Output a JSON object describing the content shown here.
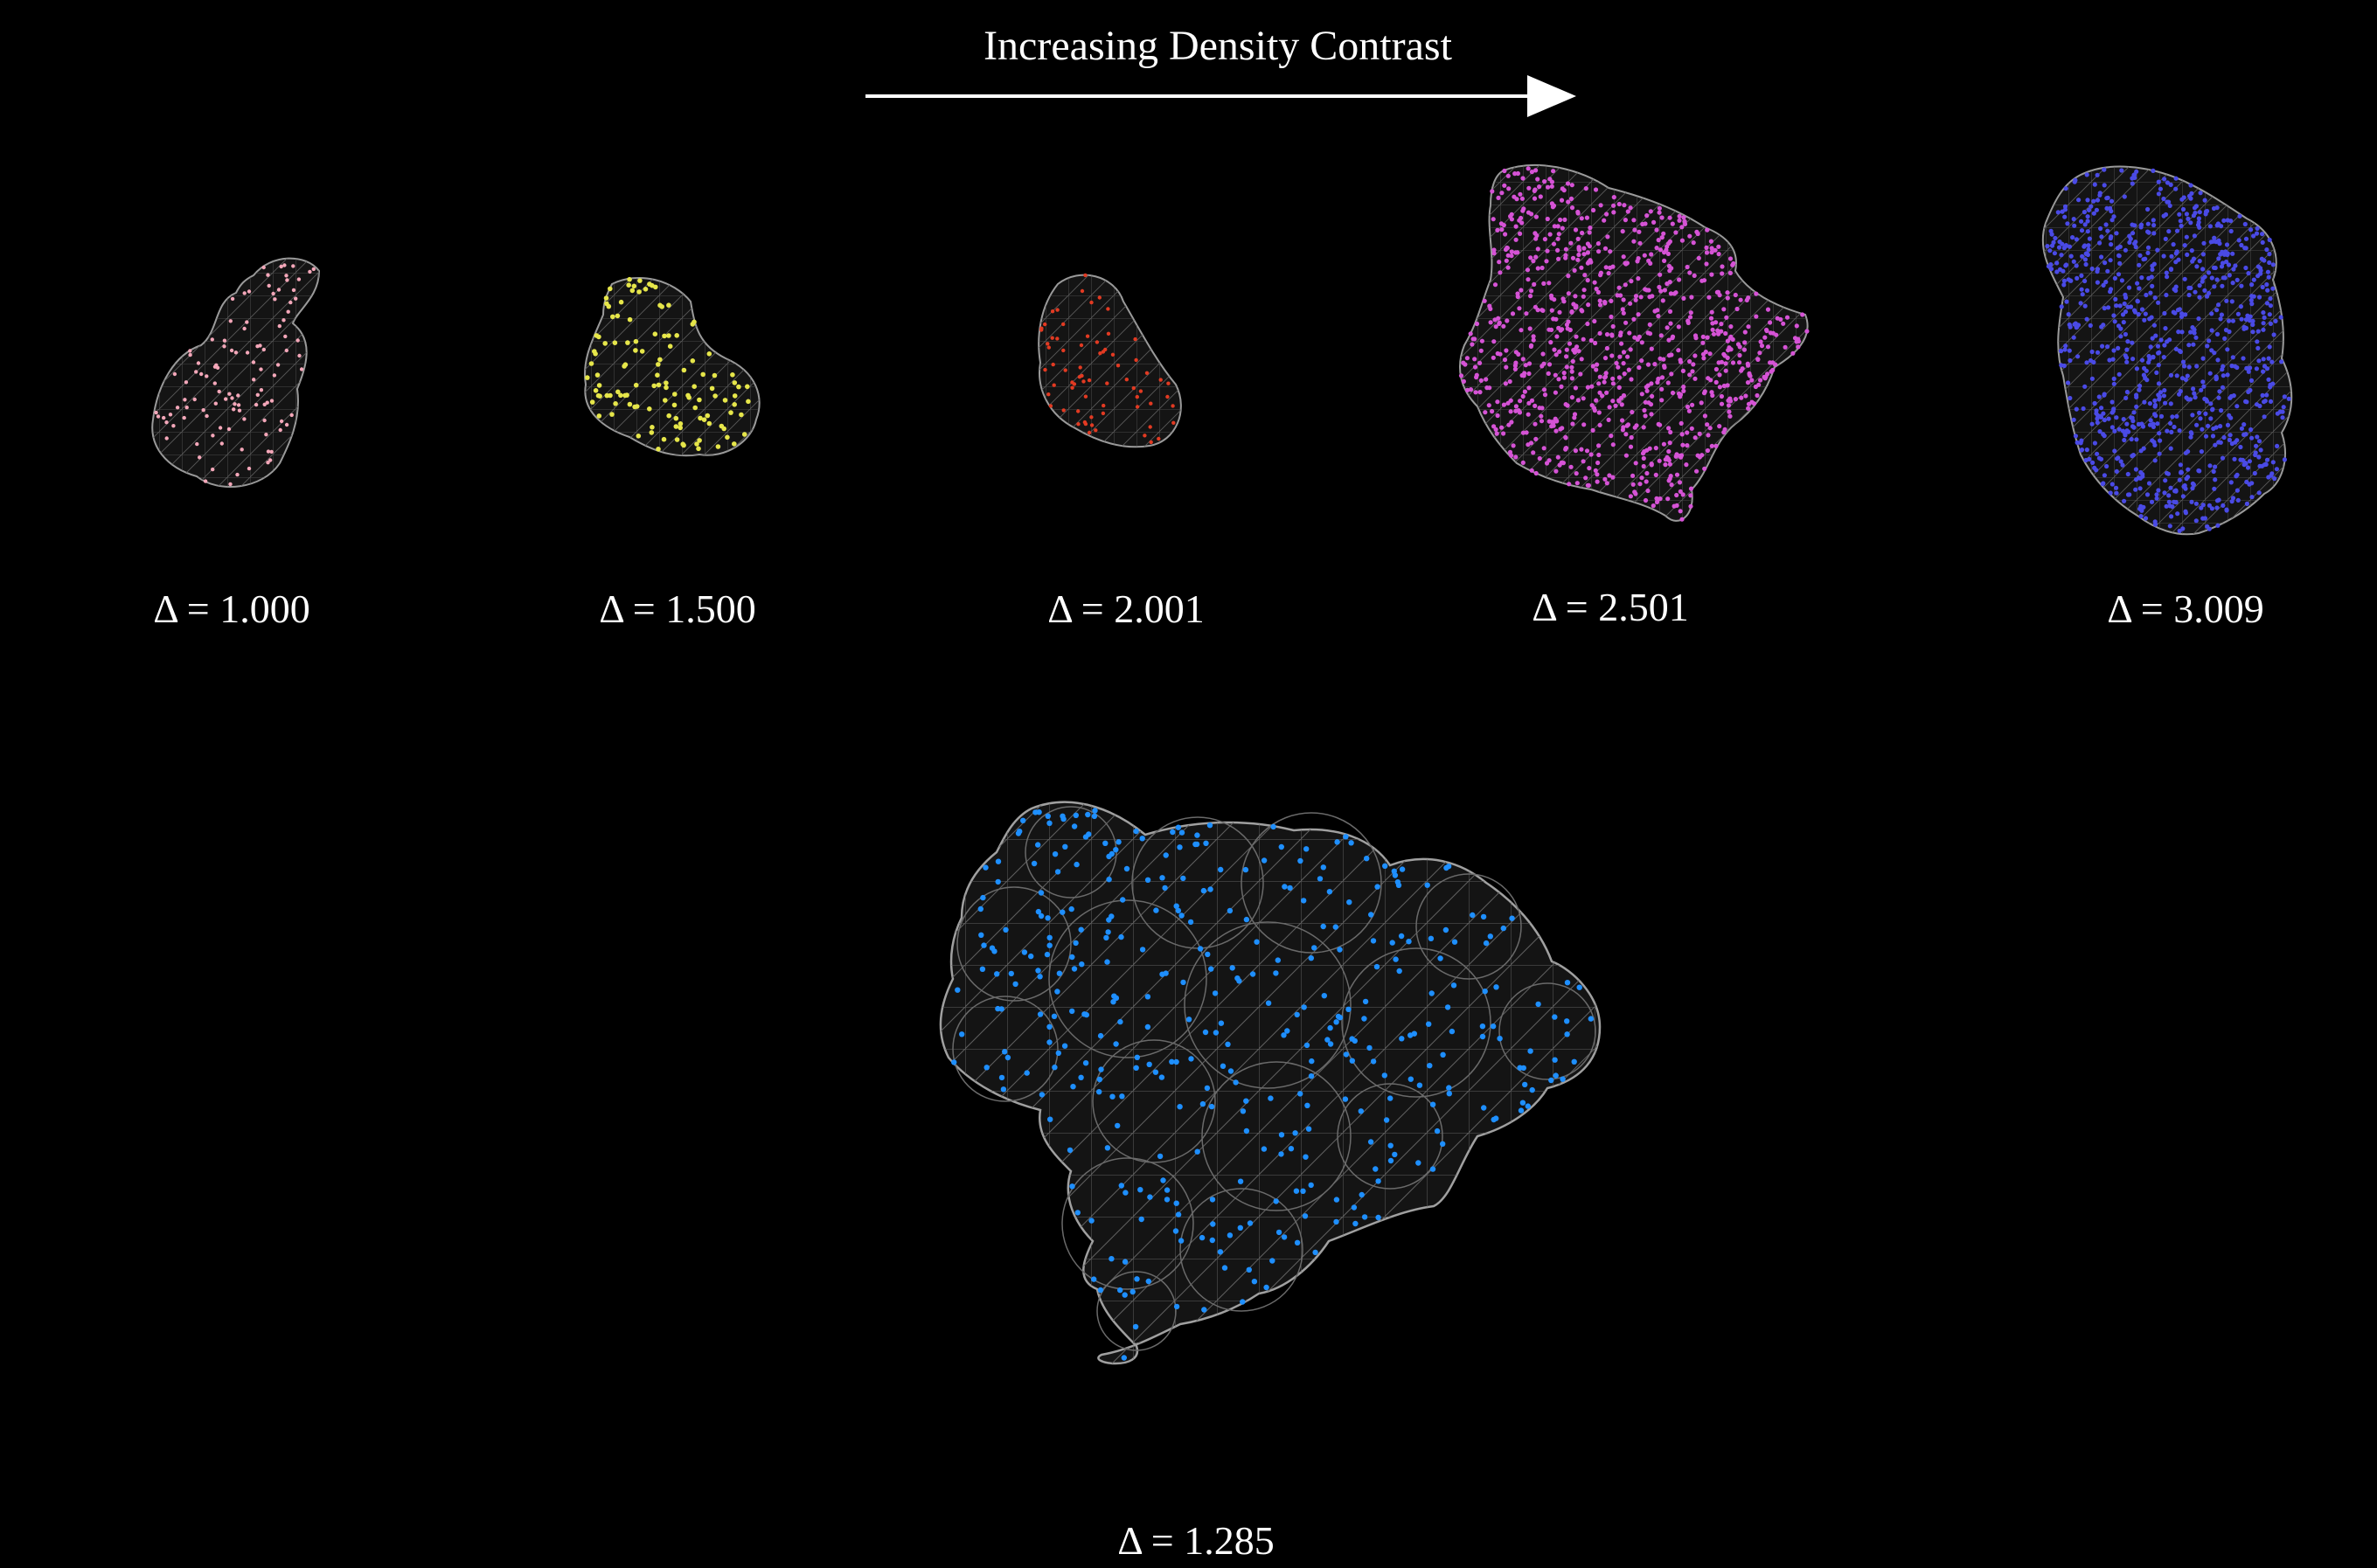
{
  "header": {
    "title": "Increasing Density Contrast"
  },
  "colors": {
    "background": "#000000",
    "text": "#ffffff",
    "mesh": "#8a8a8a",
    "blob_fill": "#1a1a1a"
  },
  "top_row": [
    {
      "label": "Δ = 1.000",
      "color": "#f4a7b9"
    },
    {
      "label": "Δ = 1.500",
      "color": "#e6e64a"
    },
    {
      "label": "Δ = 2.001",
      "color": "#e23a22"
    },
    {
      "label": "Δ = 2.501",
      "color": "#d653d6"
    },
    {
      "label": "Δ = 3.009",
      "color": "#4a4ae6"
    }
  ],
  "bottom": {
    "label": "Δ = 1.285",
    "color": "#1e8fff"
  }
}
